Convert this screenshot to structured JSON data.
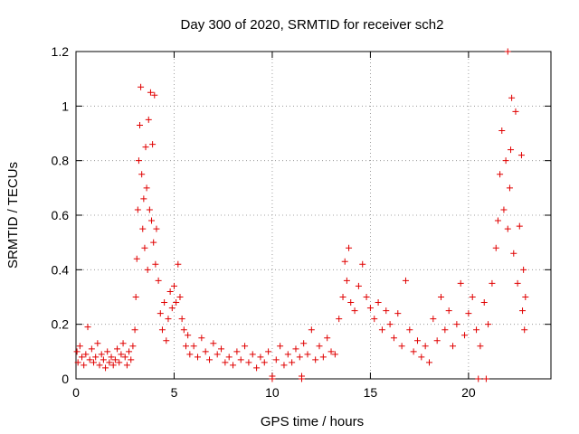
{
  "chart_data": {
    "type": "scatter",
    "title": "Day 300 of 2020, SRMTID for receiver sch2",
    "xlabel": "GPS time / hours",
    "ylabel": "SRMTID / TECUs",
    "xlim": [
      0,
      24.2
    ],
    "ylim": [
      0,
      1.2
    ],
    "grid": true,
    "marker": "+",
    "color": "#e00000",
    "x_ticks": [
      0,
      5,
      10,
      15,
      20
    ],
    "x_tick_labels": [
      "0",
      "5",
      "10",
      "15",
      "20"
    ],
    "y_ticks": [
      0,
      0.2,
      0.4,
      0.6,
      0.8,
      1,
      1.2
    ],
    "y_tick_labels": [
      "0",
      "0.2",
      "0.4",
      "0.6",
      "0.8",
      "1",
      "1.2"
    ],
    "series": [
      {
        "name": "SRMTID",
        "points": [
          [
            0.05,
            0.1
          ],
          [
            0.1,
            0.06
          ],
          [
            0.2,
            0.12
          ],
          [
            0.3,
            0.08
          ],
          [
            0.4,
            0.05
          ],
          [
            0.5,
            0.09
          ],
          [
            0.6,
            0.19
          ],
          [
            0.7,
            0.07
          ],
          [
            0.8,
            0.11
          ],
          [
            0.9,
            0.06
          ],
          [
            1.0,
            0.08
          ],
          [
            1.1,
            0.13
          ],
          [
            1.2,
            0.05
          ],
          [
            1.3,
            0.09
          ],
          [
            1.4,
            0.07
          ],
          [
            1.5,
            0.04
          ],
          [
            1.6,
            0.1
          ],
          [
            1.7,
            0.06
          ],
          [
            1.8,
            0.08
          ],
          [
            1.9,
            0.05
          ],
          [
            2.0,
            0.07
          ],
          [
            2.1,
            0.11
          ],
          [
            2.2,
            0.06
          ],
          [
            2.3,
            0.09
          ],
          [
            2.4,
            0.13
          ],
          [
            2.5,
            0.08
          ],
          [
            2.6,
            0.05
          ],
          [
            2.7,
            0.1
          ],
          [
            2.8,
            0.07
          ],
          [
            2.9,
            0.12
          ],
          [
            3.0,
            0.18
          ],
          [
            3.05,
            0.3
          ],
          [
            3.1,
            0.44
          ],
          [
            3.15,
            0.62
          ],
          [
            3.2,
            0.8
          ],
          [
            3.25,
            0.93
          ],
          [
            3.3,
            1.07
          ],
          [
            3.35,
            0.75
          ],
          [
            3.4,
            0.55
          ],
          [
            3.45,
            0.66
          ],
          [
            3.5,
            0.48
          ],
          [
            3.55,
            0.85
          ],
          [
            3.6,
            0.7
          ],
          [
            3.65,
            0.4
          ],
          [
            3.7,
            0.95
          ],
          [
            3.75,
            0.62
          ],
          [
            3.8,
            1.05
          ],
          [
            3.85,
            0.58
          ],
          [
            3.9,
            0.86
          ],
          [
            3.95,
            0.5
          ],
          [
            4.0,
            1.04
          ],
          [
            4.05,
            0.42
          ],
          [
            4.1,
            0.55
          ],
          [
            4.2,
            0.36
          ],
          [
            4.3,
            0.24
          ],
          [
            4.4,
            0.18
          ],
          [
            4.5,
            0.28
          ],
          [
            4.6,
            0.14
          ],
          [
            4.7,
            0.22
          ],
          [
            4.8,
            0.32
          ],
          [
            4.9,
            0.26
          ],
          [
            5.0,
            0.34
          ],
          [
            5.1,
            0.28
          ],
          [
            5.2,
            0.42
          ],
          [
            5.3,
            0.3
          ],
          [
            5.4,
            0.22
          ],
          [
            5.5,
            0.18
          ],
          [
            5.6,
            0.12
          ],
          [
            5.7,
            0.16
          ],
          [
            5.8,
            0.09
          ],
          [
            6.0,
            0.12
          ],
          [
            6.2,
            0.08
          ],
          [
            6.4,
            0.15
          ],
          [
            6.6,
            0.1
          ],
          [
            6.8,
            0.07
          ],
          [
            7.0,
            0.13
          ],
          [
            7.2,
            0.09
          ],
          [
            7.4,
            0.11
          ],
          [
            7.6,
            0.06
          ],
          [
            7.8,
            0.08
          ],
          [
            8.0,
            0.05
          ],
          [
            8.2,
            0.1
          ],
          [
            8.4,
            0.07
          ],
          [
            8.6,
            0.12
          ],
          [
            8.8,
            0.06
          ],
          [
            9.0,
            0.09
          ],
          [
            9.2,
            0.04
          ],
          [
            9.4,
            0.08
          ],
          [
            9.6,
            0.06
          ],
          [
            9.8,
            0.1
          ],
          [
            10.0,
            0.01
          ],
          [
            10.2,
            0.07
          ],
          [
            10.4,
            0.12
          ],
          [
            10.6,
            0.05
          ],
          [
            10.8,
            0.09
          ],
          [
            11.0,
            0.06
          ],
          [
            11.2,
            0.11
          ],
          [
            11.4,
            0.08
          ],
          [
            11.5,
            0.01
          ],
          [
            11.6,
            0.13
          ],
          [
            11.8,
            0.09
          ],
          [
            12.0,
            0.18
          ],
          [
            12.2,
            0.07
          ],
          [
            12.4,
            0.12
          ],
          [
            12.6,
            0.08
          ],
          [
            12.8,
            0.15
          ],
          [
            13.0,
            0.1
          ],
          [
            13.2,
            0.09
          ],
          [
            13.4,
            0.22
          ],
          [
            13.6,
            0.3
          ],
          [
            13.7,
            0.43
          ],
          [
            13.8,
            0.36
          ],
          [
            13.9,
            0.48
          ],
          [
            14.0,
            0.28
          ],
          [
            14.2,
            0.25
          ],
          [
            14.4,
            0.34
          ],
          [
            14.6,
            0.42
          ],
          [
            14.8,
            0.3
          ],
          [
            15.0,
            0.26
          ],
          [
            15.2,
            0.22
          ],
          [
            15.4,
            0.28
          ],
          [
            15.6,
            0.18
          ],
          [
            15.8,
            0.25
          ],
          [
            16.0,
            0.2
          ],
          [
            16.2,
            0.15
          ],
          [
            16.4,
            0.24
          ],
          [
            16.6,
            0.12
          ],
          [
            16.8,
            0.36
          ],
          [
            17.0,
            0.18
          ],
          [
            17.2,
            0.1
          ],
          [
            17.4,
            0.14
          ],
          [
            17.6,
            0.08
          ],
          [
            17.8,
            0.12
          ],
          [
            18.0,
            0.06
          ],
          [
            18.2,
            0.22
          ],
          [
            18.4,
            0.14
          ],
          [
            18.6,
            0.3
          ],
          [
            18.8,
            0.18
          ],
          [
            19.0,
            0.25
          ],
          [
            19.2,
            0.12
          ],
          [
            19.4,
            0.2
          ],
          [
            19.6,
            0.35
          ],
          [
            19.8,
            0.16
          ],
          [
            20.0,
            0.24
          ],
          [
            20.2,
            0.3
          ],
          [
            20.4,
            0.18
          ],
          [
            20.6,
            0.12
          ],
          [
            20.8,
            0.28
          ],
          [
            21.0,
            0.2
          ],
          [
            21.2,
            0.35
          ],
          [
            21.4,
            0.48
          ],
          [
            21.5,
            0.58
          ],
          [
            21.6,
            0.75
          ],
          [
            21.7,
            0.91
          ],
          [
            21.8,
            0.62
          ],
          [
            21.9,
            0.8
          ],
          [
            22.0,
            0.55
          ],
          [
            22.1,
            0.7
          ],
          [
            22.15,
            0.84
          ],
          [
            22.2,
            1.03
          ],
          [
            22.3,
            0.46
          ],
          [
            22.4,
            0.98
          ],
          [
            22.5,
            0.35
          ],
          [
            22.6,
            0.56
          ],
          [
            22.7,
            0.82
          ],
          [
            22.75,
            0.25
          ],
          [
            22.8,
            0.4
          ],
          [
            22.85,
            0.18
          ],
          [
            22.9,
            0.3
          ],
          [
            22.0,
            1.2
          ],
          [
            20.5,
            0.0
          ],
          [
            20.9,
            0.0
          ],
          [
            10.0,
            0.0
          ],
          [
            11.5,
            0.0
          ]
        ]
      }
    ]
  }
}
